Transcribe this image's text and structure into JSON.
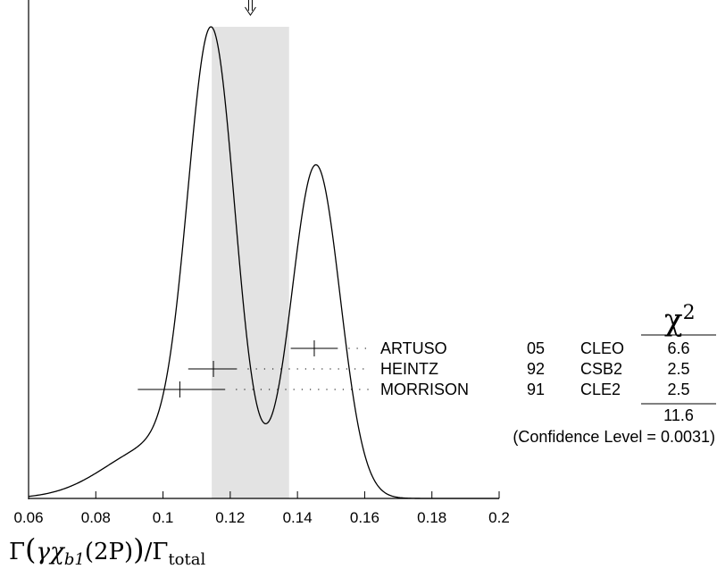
{
  "chart_data": {
    "type": "ideogram",
    "xlabel": "Γ(γχ_b1(2P))/Γ_total",
    "xlim": [
      0.06,
      0.2
    ],
    "xticks": [
      "0.06",
      "0.08",
      "0.1",
      "0.12",
      "0.14",
      "0.16",
      "0.18",
      "0.2"
    ],
    "average_band": [
      0.1145,
      0.1375
    ],
    "average_value": 0.126,
    "curve_peaks": [
      {
        "x": 0.1145,
        "height": 1.0
      },
      {
        "x": 0.1455,
        "height": 0.74
      }
    ],
    "curve_dip": {
      "x": 0.1305,
      "height": 0.17
    },
    "measurements": [
      {
        "author": "ARTUSO",
        "year": "05",
        "experiment": "CLEO",
        "value": 0.145,
        "err_low": 0.007,
        "err_high": 0.007,
        "chi2": "6.6"
      },
      {
        "author": "HEINTZ",
        "year": "92",
        "experiment": "CSB2",
        "value": 0.115,
        "err_low": 0.0075,
        "err_high": 0.007,
        "chi2": "2.5"
      },
      {
        "author": "MORRISON",
        "year": "91",
        "experiment": "CLE2",
        "value": 0.105,
        "err_low": 0.0125,
        "err_high": 0.0135,
        "chi2": "2.5"
      }
    ],
    "chi2_header": "χ",
    "chi2_power": "2",
    "chi2_total": "11.6",
    "confidence_level": "(Confidence Level = 0.0031)"
  },
  "x_label": {
    "gamma1": "Γ",
    "gamma2": "γχ",
    "sub1": "b1",
    "arg": "(2P)",
    "slash": "/Γ",
    "sub2": "total"
  }
}
